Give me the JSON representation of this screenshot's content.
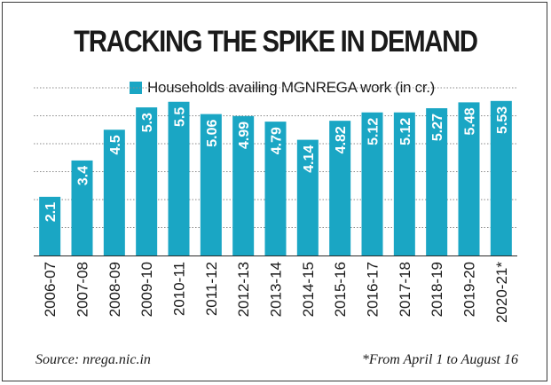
{
  "chart_data": {
    "type": "bar",
    "title": "TRACKING THE SPIKE IN DEMAND",
    "legend": "Households availing MGNREGA work (in cr.)",
    "categories": [
      "2006-07",
      "2007-08",
      "2008-09",
      "2009-10",
      "2010-11",
      "2011-12",
      "2012-13",
      "2013-14",
      "2014-15",
      "2015-16",
      "2016-17",
      "2017-18",
      "2018-19",
      "2019-20",
      "2020-21*"
    ],
    "value_labels": [
      "2.1",
      "3.4",
      "4.5",
      "5.3",
      "5.5",
      "5.06",
      "4.99",
      "4.79",
      "4.14",
      "4.82",
      "5.12",
      "5.12",
      "5.27",
      "5.48",
      "5.53"
    ],
    "values": [
      2.1,
      3.4,
      4.5,
      5.3,
      5.5,
      5.06,
      4.99,
      4.79,
      4.14,
      4.82,
      5.12,
      5.12,
      5.27,
      5.48,
      5.53
    ],
    "ylim": [
      0,
      6
    ],
    "grid": true,
    "legend_position": "top",
    "bar_color": "#1aa6c4",
    "label_color": "#ffffff"
  },
  "footer": {
    "source": "Source: nrega.nic.in",
    "note": "*From April 1 to August 16"
  }
}
